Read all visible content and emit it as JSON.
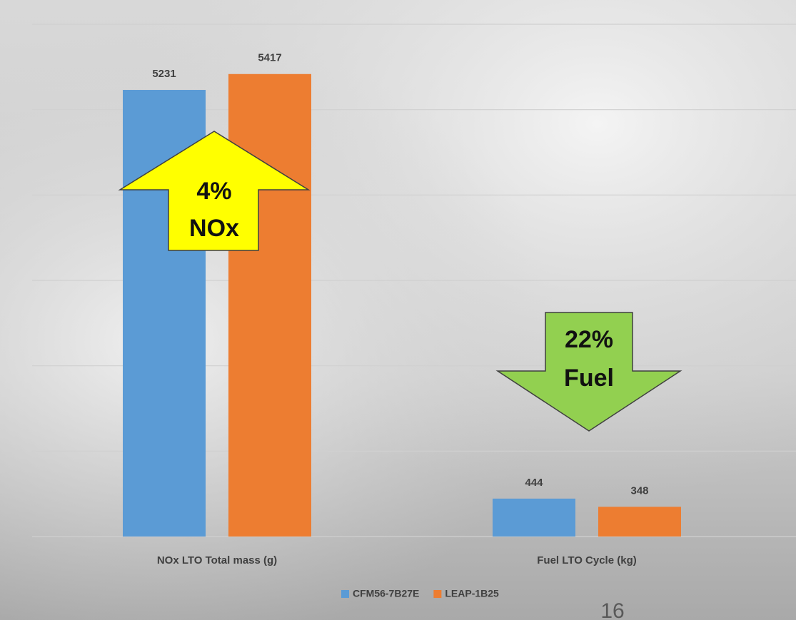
{
  "chart_data": {
    "type": "bar",
    "categories": [
      "NOx LTO Total mass (g)",
      "Fuel LTO Cycle (kg)"
    ],
    "series": [
      {
        "name": "CFM56-7B27E",
        "color": "#5b9bd5",
        "values": [
          5231,
          444
        ]
      },
      {
        "name": "LEAP-1B25",
        "color": "#ed7d31",
        "values": [
          5417,
          348
        ]
      }
    ],
    "ylim": [
      0,
      6000
    ],
    "yticks": [
      0,
      1000,
      2000,
      3000,
      4000,
      5000,
      6000
    ],
    "grid": true,
    "legend": "bottom",
    "annotations": [
      {
        "text": [
          "4%",
          "NOx"
        ],
        "color": "#ffff00",
        "direction": "up"
      },
      {
        "text": [
          "22%",
          "Fuel"
        ],
        "color": "#92d050",
        "direction": "down"
      }
    ],
    "page_number": "16"
  }
}
